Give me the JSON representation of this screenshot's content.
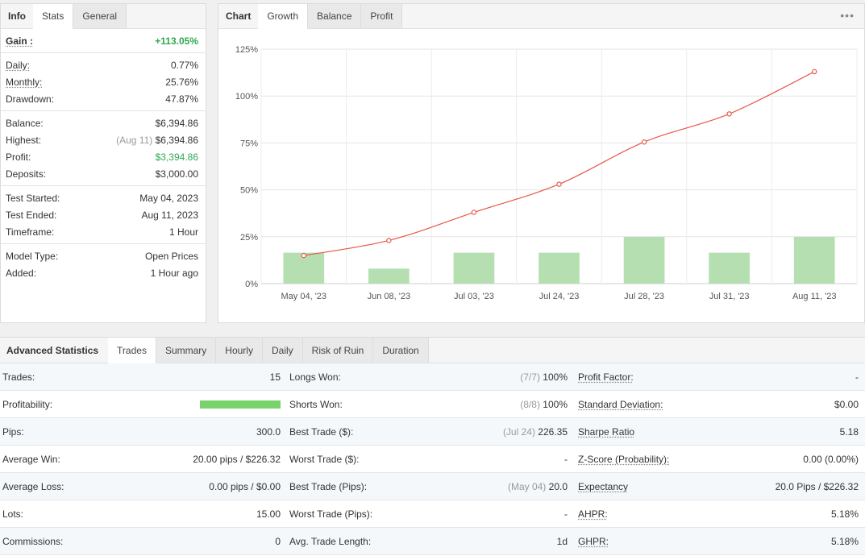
{
  "info": {
    "tabs": [
      "Info",
      "Stats",
      "General"
    ],
    "gain": {
      "label": "Gain :",
      "value": "+113.05%"
    },
    "daily": {
      "label": "Daily:",
      "value": "0.77%"
    },
    "monthly": {
      "label": "Monthly:",
      "value": "25.76%"
    },
    "drawdown": {
      "label": "Drawdown:",
      "value": "47.87%"
    },
    "balance": {
      "label": "Balance:",
      "value": "$6,394.86"
    },
    "highest": {
      "label": "Highest:",
      "date": "(Aug 11)",
      "value": "$6,394.86"
    },
    "profit": {
      "label": "Profit:",
      "value": "$3,394.86"
    },
    "deposits": {
      "label": "Deposits:",
      "value": "$3,000.00"
    },
    "test_started": {
      "label": "Test Started:",
      "value": "May 04, 2023"
    },
    "test_ended": {
      "label": "Test Ended:",
      "value": "Aug 11, 2023"
    },
    "timeframe": {
      "label": "Timeframe:",
      "value": "1 Hour"
    },
    "model_type": {
      "label": "Model Type:",
      "value": "Open Prices"
    },
    "added": {
      "label": "Added:",
      "value": "1 Hour ago"
    }
  },
  "chart_tabs": [
    "Chart",
    "Growth",
    "Balance",
    "Profit"
  ],
  "chart_data": {
    "type": "line",
    "categories": [
      "May 04, '23",
      "Jun 08, '23",
      "Jul 03, '23",
      "Jul 24, '23",
      "Jul 28, '23",
      "Jul 31, '23",
      "Aug 11, '23"
    ],
    "series": [
      {
        "type": "bar",
        "values": [
          16.5,
          8,
          16.5,
          16.5,
          25,
          16.5,
          25
        ],
        "color": "#b5dfb0"
      },
      {
        "type": "line",
        "values": [
          15,
          23,
          38,
          53,
          75.5,
          90.5,
          113
        ],
        "color": "#e8574a"
      }
    ],
    "ylim": [
      0,
      125
    ],
    "yticks": [
      "0%",
      "25%",
      "50%",
      "75%",
      "100%",
      "125%"
    ],
    "grid": true
  },
  "adv": {
    "tabs": [
      "Advanced Statistics",
      "Trades",
      "Summary",
      "Hourly",
      "Daily",
      "Risk of Ruin",
      "Duration"
    ],
    "col1": [
      {
        "label": "Trades:",
        "value": "15"
      },
      {
        "label": "Profitability:",
        "value": "",
        "fraction": 1.0
      },
      {
        "label": "Pips:",
        "value": "300.0"
      },
      {
        "label": "Average Win:",
        "value": "20.00 pips / $226.32"
      },
      {
        "label": "Average Loss:",
        "value": "0.00 pips / $0.00"
      },
      {
        "label": "Lots:",
        "value": "15.00"
      },
      {
        "label": "Commissions:",
        "value": "0"
      }
    ],
    "col2": [
      {
        "label": "Longs Won:",
        "note": "(7/7)",
        "value": "100%"
      },
      {
        "label": "Shorts Won:",
        "note": "(8/8)",
        "value": "100%"
      },
      {
        "label": "Best Trade ($):",
        "note": "(Jul 24)",
        "value": "226.35"
      },
      {
        "label": "Worst Trade ($):",
        "note": "",
        "value": "-"
      },
      {
        "label": "Best Trade (Pips):",
        "note": "(May 04)",
        "value": "20.0"
      },
      {
        "label": "Worst Trade (Pips):",
        "note": "",
        "value": "-"
      },
      {
        "label": "Avg. Trade Length:",
        "note": "",
        "value": "1d"
      }
    ],
    "col3": [
      {
        "label": "Profit Factor:",
        "value": "-"
      },
      {
        "label": "Standard Deviation:",
        "value": "$0.00"
      },
      {
        "label": "Sharpe Ratio",
        "value": "5.18"
      },
      {
        "label": "Z-Score (Probability):",
        "value": "0.00 (0.00%)"
      },
      {
        "label": "Expectancy",
        "value": "20.0 Pips / $226.32"
      },
      {
        "label": "AHPR:",
        "value": "5.18%"
      },
      {
        "label": "GHPR:",
        "value": "5.18%"
      }
    ]
  }
}
